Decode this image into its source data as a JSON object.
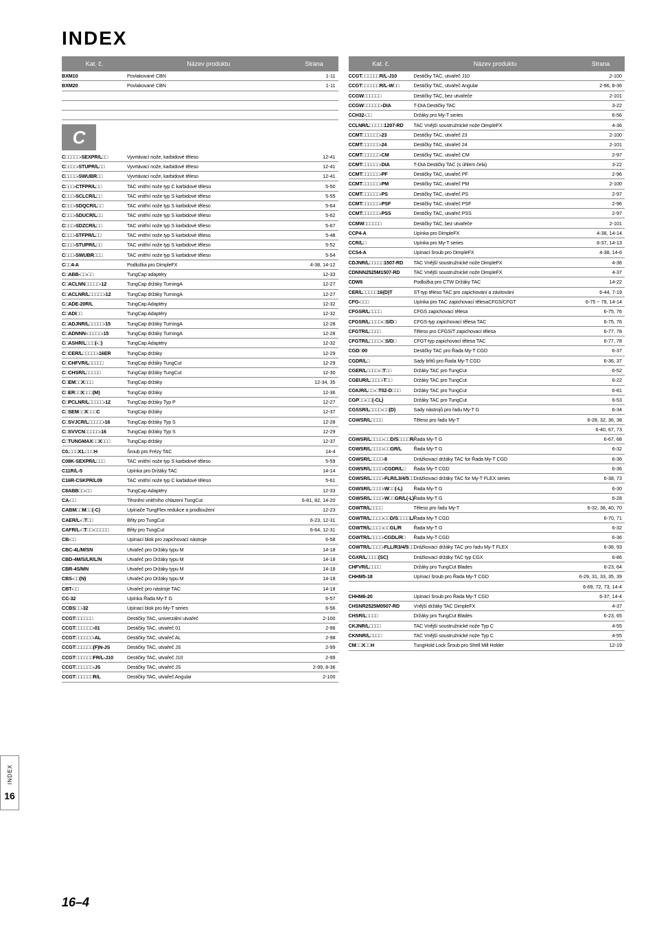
{
  "page_title": "INDEX",
  "headers": {
    "cat": "Kat. č.",
    "prod": "Název produktu",
    "page": "Strana"
  },
  "section_letter": "C",
  "sidebar": {
    "label": "INDEX",
    "num": "16"
  },
  "footer_page": "16–4",
  "left_top": [
    {
      "cat": "BXM10",
      "prod": "Povlakované CBN",
      "page": "1-11"
    },
    {
      "cat": "BXM20",
      "prod": "Povlakované CBN",
      "page": "1-11"
    }
  ],
  "left_rows": [
    {
      "cat": "C□□□□□-SEXPR/L□□",
      "prod": "Vyvrtávací nože, karbidové těleso",
      "page": "12-41"
    },
    {
      "cat": "C□□□□-STUPR/L□□",
      "prod": "Vyvrtávací nože, karbidové těleso",
      "page": "12-41"
    },
    {
      "cat": "C□□□□-SWUBR□□",
      "prod": "Vyvrtávací nože, karbidové těleso",
      "page": "12-41"
    },
    {
      "cat": "C□□□-CTFPR/L□□",
      "prod": "TAC vnitřní nože typ C karbidové těleso",
      "page": "5-50"
    },
    {
      "cat": "C□□□-SCLCR/L□□",
      "prod": "TAC vnitřní nože typ S karbidové těleso",
      "page": "5-55"
    },
    {
      "cat": "C□□□-SDQCR/L□□",
      "prod": "TAC vnitřní nože typ S karbidové těleso",
      "page": "5-64"
    },
    {
      "cat": "C□□□-SDUCR/L□□",
      "prod": "TAC vnitřní nože typ S karbidové těleso",
      "page": "5-62"
    },
    {
      "cat": "C□□□-SDZCR/L□□",
      "prod": "TAC vnitřní nože typ S karbidové těleso",
      "page": "5-67"
    },
    {
      "cat": "C□□□-STFPR/L□□",
      "prod": "TAC vnitřní nože typ S karbidové těleso",
      "page": "5-48"
    },
    {
      "cat": "C□□□-STUPR/L□□",
      "prod": "TAC vnitřní nože typ S karbidové těleso",
      "page": "5-52"
    },
    {
      "cat": "C□□□-SWUBR□□□",
      "prod": "TAC vnitřní nože typ S karbidové těleso",
      "page": "5-54"
    },
    {
      "cat": "C□□4-A",
      "prod": "Podložka pro DimpleFX",
      "page": "4-38, 14-12"
    },
    {
      "cat": "C□ABB-□□-□□",
      "prod": "TungCap adaptéry",
      "page": "12-33"
    },
    {
      "cat": "C□ACLNN□□□□□-12",
      "prod": "TungCap držáky TurningA",
      "page": "12-27"
    },
    {
      "cat": "C□ACLNR/L□□□□□-12",
      "prod": "TungCap držáky TurningA",
      "page": "12-27"
    },
    {
      "cat": "C□ADE-20R/L",
      "prod": "TungCap Adaptéry",
      "page": "12-32"
    },
    {
      "cat": "C□ADI□□",
      "prod": "TungCap Adaptéry",
      "page": "12-32"
    },
    {
      "cat": "C□ADJNR/L□□□□□-15",
      "prod": "TungCap držáky TurningA",
      "page": "12-28"
    },
    {
      "cat": "C□ADNNN-□□□□□-15",
      "prod": "TungCap držáky TurningA",
      "page": "12-28"
    },
    {
      "cat": "C□ASHR/L□□□(-□)",
      "prod": "TungCap Adaptéry",
      "page": "12-32"
    },
    {
      "cat": "C□CER/L□□□□□-16ER",
      "prod": "TungCap držáky",
      "page": "12-29"
    },
    {
      "cat": "C□CHFVR/L□□□□□",
      "prod": "TungCap držáky TungCut",
      "page": "12-29"
    },
    {
      "cat": "C□CHSR/L□□□□□",
      "prod": "TungCap držáky TungCut",
      "page": "12-30"
    },
    {
      "cat": "C□EM□□X□□□",
      "prod": "TungCap držáky",
      "page": "12-34, 35"
    },
    {
      "cat": "C□ER□□X□□□(M)",
      "prod": "TungCap držáky",
      "page": "12-36"
    },
    {
      "cat": "C□PCLNR/L□□□□□-12",
      "prod": "TungCap držáky Typ P",
      "page": "12-27"
    },
    {
      "cat": "C□SEM□□X□□□C",
      "prod": "TungCap držáky",
      "page": "12-37"
    },
    {
      "cat": "C□SVJCR/L□□□□□-16",
      "prod": "TungCap držáky Typ S",
      "page": "12-28"
    },
    {
      "cat": "C□SVVCN□□□□□-16",
      "prod": "TungCap držáky Typ S",
      "page": "12-29"
    },
    {
      "cat": "C□TUNGMAX□□X□□□",
      "prod": "TungCap držáky",
      "page": "12-37"
    },
    {
      "cat": "C0.□□□X1.□□□H",
      "prod": "Šroub pro Frézy TAC",
      "page": "14-4"
    },
    {
      "cat": "C08K-SEXPR/L□□□",
      "prod": "TAC vnitřní nože typ S karbidové těleso",
      "page": "5-59"
    },
    {
      "cat": "C11R/L-5",
      "prod": "Upínka pro Držáky TAC",
      "page": "14-14"
    },
    {
      "cat": "C16R-CSKPR/L09",
      "prod": "TAC vnitřní nože typ C karbidové těleso",
      "page": "5-61"
    },
    {
      "cat": "C8ABB□□-□□",
      "prod": "TungCap Adaptéry",
      "page": "12-33"
    },
    {
      "cat": "CA-□□",
      "prod": "Těsnění vnitřního chlazení TungCut",
      "page": "6-81, 82, 14-20"
    },
    {
      "cat": "CABM□□M□□(-C)",
      "prod": "Upínače TungFlex redukce a prodloužení",
      "page": "12-23"
    },
    {
      "cat": "CAER/L-□T□□",
      "prod": "Břity pro TungCut",
      "page": "6-23, 12-31"
    },
    {
      "cat": "CAFR/L-□T□□-□□□□□",
      "prod": "Břity pro TungCut",
      "page": "6-64, 12-31"
    },
    {
      "cat": "CB-□□",
      "prod": "Upínací blok pro zapichovací nástroje",
      "page": "6-58"
    },
    {
      "cat": "CBC-4L/M/SN",
      "prod": "Utvařeč pro Držáky typu M",
      "page": "14-18"
    },
    {
      "cat": "CBD-4M/S/LR/L/N",
      "prod": "Utvařeč pro Držáky typu M",
      "page": "14-18"
    },
    {
      "cat": "CBR-4S/MN",
      "prod": "Utvařeč pro Držáky typu M",
      "page": "14-18"
    },
    {
      "cat": "CBS-□□(N)",
      "prod": "Utvařeč pro Držáky typu M",
      "page": "14-18"
    },
    {
      "cat": "CBT-□□",
      "prod": "Utvařeč pro nástroje TAC",
      "page": "14-18"
    },
    {
      "cat": "CC-32",
      "prod": "Upínka Řada My-T G",
      "page": "6-57"
    },
    {
      "cat": "CCBS□□-32",
      "prod": "Upínací blok pro My-T series",
      "page": "6-56"
    },
    {
      "cat": "CCGT□□□□□□",
      "prod": "Destičky TAC, univerzální utvařeč",
      "page": "2-100"
    },
    {
      "cat": "CCGT□□□□□□-01",
      "prod": "Destičky TAC, utvařeč 01",
      "page": "2-96"
    },
    {
      "cat": "CCGT□□□□□□-AL",
      "prod": "Destičky TAC, utvařeč AL",
      "page": "2-98"
    },
    {
      "cat": "CCGT□□□□□□(F)N-JS",
      "prod": "Destičky TAC, utvařeč JS",
      "page": "2-99"
    },
    {
      "cat": "CCGT□□□□□□FR/L-J10",
      "prod": "Destičky TAC, utvařeč J10",
      "page": "2-99"
    },
    {
      "cat": "CCGT□□□□□□-JS",
      "prod": "Destičky TAC, utvařeč JS",
      "page": "2-99, 8-36"
    },
    {
      "cat": "CCGT□□□□□□R/L",
      "prod": "Destičky TAC, utvařeč Angular",
      "page": "2-100"
    }
  ],
  "right_rows": [
    {
      "cat": "CCGT□□□□□□R/L-J10",
      "prod": "Destičky TAC, utvařeč J10",
      "page": "2-100"
    },
    {
      "cat": "CCGT□□□□□□R/L-W□□",
      "prod": "Destičky TAC, utvařeč Angular",
      "page": "2-96, 8-36"
    },
    {
      "cat": "CCGW□□□□□□",
      "prod": "Destičky TAC, bez utvařeče",
      "page": "2-101"
    },
    {
      "cat": "CCGW□□□□□□-DIA",
      "prod": "T-DIA Destičky TAC",
      "page": "3-22"
    },
    {
      "cat": "CCH32-□□",
      "prod": "Držáky pro My-T series",
      "page": "6-56"
    },
    {
      "cat": "CCLNR/L□□□□□1207-RD",
      "prod": "TAC Vnější soustružnické nože DimpleFX",
      "page": "4-36"
    },
    {
      "cat": "CCMT□□□□□□-23",
      "prod": "Destičky TAC, utvařeč 23",
      "page": "2-100"
    },
    {
      "cat": "CCMT□□□□□□-24",
      "prod": "Destičky TAC, utvařeč 24",
      "page": "2-101"
    },
    {
      "cat": "CCMT□□□□□□-CM",
      "prod": "Destičky TAC, utvařeč CM",
      "page": "2-97"
    },
    {
      "cat": "CCMT□□□□□□-DIA",
      "prod": "T-DIA Destičky TAC (s úhlem čela)",
      "page": "3-22"
    },
    {
      "cat": "CCMT□□□□□□-PF",
      "prod": "Destičky TAC, utvařeč PF",
      "page": "2-96"
    },
    {
      "cat": "CCMT□□□□□□-PM",
      "prod": "Destičky TAC, utvařeč PM",
      "page": "2-100"
    },
    {
      "cat": "CCMT□□□□□□-PS",
      "prod": "Destičky TAC, utvařeč PS",
      "page": "2-97"
    },
    {
      "cat": "CCMT□□□□□□-PSF",
      "prod": "Destičky TAC, utvařeč PSF",
      "page": "2-96"
    },
    {
      "cat": "CCMT□□□□□□-PSS",
      "prod": "Destičky TAC, utvařeč PSS",
      "page": "2-97"
    },
    {
      "cat": "CCMW□□□□□□",
      "prod": "Destičky TAC, bez utvařeče",
      "page": "2-101"
    },
    {
      "cat": "CCP4-A",
      "prod": "Upínka pro DimpleFX",
      "page": "4-38, 14-14"
    },
    {
      "cat": "CCR/L□",
      "prod": "Upínka pro My-T series",
      "page": "6-37, 14-13"
    },
    {
      "cat": "CCS4-A",
      "prod": "Upínací šroub pro DimpleFX",
      "page": "4-38, 14-6"
    },
    {
      "cat": "CDJNR/L□□□□□1507-RD",
      "prod": "TAC Vnější soustružnické nože DimpleFX",
      "page": "4-36"
    },
    {
      "cat": "CDNNN2525M1507-RD",
      "prod": "TAC Vnější soustružnické nože DimpleFX",
      "page": "4-37"
    },
    {
      "cat": "CDW6",
      "prod": "Podložka pro CTW Držáky TAC",
      "page": "14-22"
    },
    {
      "cat": "CER/L□□□□□16(D)T",
      "prod": "ST-typ těleso TAC pro zapichování a závitování",
      "page": "6-44, 7-19"
    },
    {
      "cat": "CFG-□□□",
      "prod": "Upínka pro TAC zapichovací tělesaCFGS/CFGT",
      "page": "6-75 ~ 79, 14-14"
    },
    {
      "cat": "CFGSR/L□□□□",
      "prod": "CFGS zapichovací tělesa",
      "page": "6-75, 76"
    },
    {
      "cat": "CFGSR/L□□□□-□S/D□",
      "prod": "CFGS-typ zapichovací tělesa TAC",
      "page": "6-75, 76"
    },
    {
      "cat": "CFGTR/L□□□□",
      "prod": "Těleso pro CFGS/T zapichovací tělesa",
      "page": "6-77, 78"
    },
    {
      "cat": "CFGTR/L□□□□-□S/D□",
      "prod": "CFGT-typ zapichovací tělesa TAC",
      "page": "6-77, 78"
    },
    {
      "cat": "CGD□00",
      "prod": "Destičky TAC pro Řada My-T CGD",
      "page": "6-37"
    },
    {
      "cat": "CGDR/L□",
      "prod": "Sady břitů pro Řada My-T CGD",
      "page": "6-36, 37"
    },
    {
      "cat": "CGER/L□□□□-□T□□",
      "prod": "Držáky TAC pro TungCut",
      "page": "6-52"
    },
    {
      "cat": "CGEUR/L□□□□-T□□",
      "prod": "Držáky TAC pro TungCut",
      "page": "6-22"
    },
    {
      "cat": "CGIUR/L□□-□T02-D□□□",
      "prod": "Držáky TAC pro TungCut",
      "page": "6-81"
    },
    {
      "cat": "CGP□□-□□(-CL)",
      "prod": "Držáky TAC pro TungCut",
      "page": "6-53"
    },
    {
      "cat": "CGSSR/L□□□□-□□(D)",
      "prod": "Sady nástrojů pro řadu My-T G",
      "page": "6-34"
    },
    {
      "cat": "CGWSR/L□□□□",
      "prod": "Těleso pro řadu My-T",
      "page": "6-28, 32, 36, 38"
    },
    {
      "cat": "",
      "prod": "",
      "page": "6-40, 67, 73"
    },
    {
      "cat": "CGWSR/L□□□□-□□D/S□□□□R/L",
      "prod": "Řada My-T G",
      "page": "6-67, 68"
    },
    {
      "cat": "CGWSR/L□□□□-□□GR/L",
      "prod": "Řada My-T G",
      "page": "6-32"
    },
    {
      "cat": "CGWSR/L□□□□-8",
      "prod": "Drážkovací držáky TAC for Řada My-T CGD",
      "page": "6-36"
    },
    {
      "cat": "CGWSR/L□□□□-CGDR/L□",
      "prod": "Řada My-T CGD",
      "page": "6-36"
    },
    {
      "cat": "CGWSR/L□□□□-FLR/L3/4/5□□",
      "prod": "Drážkovací držáky TAC for My-T FLEX series",
      "page": "6-38, 73"
    },
    {
      "cat": "CGWSR/L□□□□-W□□(-L)",
      "prod": "Řada My-T G",
      "page": "6-30"
    },
    {
      "cat": "CGWSR/L□□□□-W□□GR/L(-L)",
      "prod": "Řada My-T G",
      "page": "6-28"
    },
    {
      "cat": "CGWTR/L□□□□",
      "prod": "Těleso pro řadu My-T",
      "page": "6-32, 38, 40, 70"
    },
    {
      "cat": "CGWTR/L□□□□-□□D/S□□□□L/R",
      "prod": "Řada My-T CGD",
      "page": "6-70, 71"
    },
    {
      "cat": "CGWTR/L□□□□-□□GL/R",
      "prod": "Řada My-T G",
      "page": "6-32"
    },
    {
      "cat": "CGWTR/L□□□□-CGDL/R□",
      "prod": "Řada My-T CGD",
      "page": "6-36"
    },
    {
      "cat": "CGWTR/L□□□□-FLL/R3/4/5□□",
      "prod": "Drážkovací držáky TAC pro řadu My-T FLEX",
      "page": "6-38, 93"
    },
    {
      "cat": "CGXR/L□□□□(SC)",
      "prod": "Drážkovací držáky TAC typ CGX",
      "page": "6-86"
    },
    {
      "cat": "CHFVR/L□□□□",
      "prod": "Držáky pro TungCut Blades",
      "page": "6-23, 64"
    },
    {
      "cat": "CHHM5-18",
      "prod": "Upínací šroub pro Řada My-T CGD",
      "page": "6-29, 31, 33, 35, 39"
    },
    {
      "cat": "",
      "prod": "",
      "page": "6-69, 72, 73, 14-4"
    },
    {
      "cat": "CHHM6-20",
      "prod": "Upínací šroub pro Řada My-T CGD",
      "page": "6-37, 14-4"
    },
    {
      "cat": "CHSNR2525M0507-RD",
      "prod": "Vnější držáky TAC DimpleFX",
      "page": "4-37"
    },
    {
      "cat": "CHSR/L□□□□",
      "prod": "Držáky pro TungCut Blades",
      "page": "6-23, 65"
    },
    {
      "cat": "CKJNR/L□□□□",
      "prod": "TAC Vnější soustružnické nože Typ C",
      "page": "4-55"
    },
    {
      "cat": "CKNNR/L□□□□",
      "prod": "TAC Vnější soustružnické nože Typ C",
      "page": "4-55"
    },
    {
      "cat": "CM□□X□□H",
      "prod": "TungHold Lock Šroub pro Shell Mill Holder",
      "page": "12-19"
    }
  ]
}
